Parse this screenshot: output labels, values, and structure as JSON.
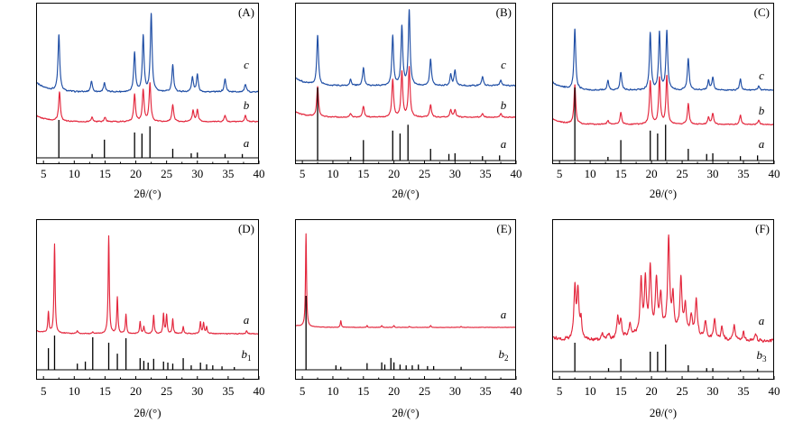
{
  "chart_data": [
    {
      "type": "line",
      "title": "(A)",
      "xlabel": "2θ/(°)",
      "ylabel": "",
      "xlim": [
        3.8,
        40
      ],
      "xticks": [
        5,
        10,
        15,
        20,
        25,
        30,
        35,
        40
      ],
      "series": [
        {
          "name": "c",
          "color": "#1f4ea5",
          "peaks": [
            [
              7.5,
              72
            ],
            [
              12.8,
              14
            ],
            [
              14.9,
              12
            ],
            [
              19.8,
              51
            ],
            [
              21.2,
              71
            ],
            [
              22.5,
              100
            ],
            [
              26.0,
              35
            ],
            [
              29.2,
              19
            ],
            [
              30.0,
              22
            ],
            [
              34.5,
              17
            ],
            [
              37.8,
              10
            ]
          ]
        },
        {
          "name": "b",
          "color": "#e3263c",
          "peaks": [
            [
              7.6,
              76
            ],
            [
              12.9,
              12
            ],
            [
              15.0,
              12
            ],
            [
              19.8,
              71
            ],
            [
              21.2,
              83
            ],
            [
              22.3,
              100
            ],
            [
              26.0,
              45
            ],
            [
              29.3,
              29
            ],
            [
              30.0,
              31
            ],
            [
              34.5,
              17
            ],
            [
              37.8,
              17
            ]
          ]
        },
        {
          "name": "a",
          "color": "#000000",
          "sticks": [
            [
              7.5,
              100
            ],
            [
              12.9,
              10
            ],
            [
              14.9,
              48
            ],
            [
              19.8,
              67
            ],
            [
              21.0,
              64
            ],
            [
              22.3,
              83
            ],
            [
              26.0,
              24
            ],
            [
              29.0,
              12
            ],
            [
              30.0,
              14
            ],
            [
              34.5,
              10
            ],
            [
              37.3,
              10
            ]
          ]
        }
      ]
    },
    {
      "type": "line",
      "title": "(B)",
      "xlabel": "2θ/(°)",
      "ylabel": "",
      "xlim": [
        3.8,
        40
      ],
      "xticks": [
        5,
        10,
        15,
        20,
        25,
        30,
        35,
        40
      ],
      "series": [
        {
          "name": "c",
          "color": "#1f4ea5",
          "peaks": [
            [
              7.5,
              66
            ],
            [
              12.9,
              8
            ],
            [
              15.0,
              24
            ],
            [
              19.8,
              66
            ],
            [
              21.3,
              78
            ],
            [
              22.5,
              100
            ],
            [
              26.0,
              36
            ],
            [
              29.3,
              14
            ],
            [
              30.0,
              20
            ],
            [
              34.5,
              12
            ],
            [
              37.5,
              8
            ]
          ]
        },
        {
          "name": "b",
          "color": "#e3263c",
          "peaks": [
            [
              7.5,
              60
            ],
            [
              12.9,
              7
            ],
            [
              15.0,
              22
            ],
            [
              19.8,
              76
            ],
            [
              21.3,
              91
            ],
            [
              22.5,
              100
            ],
            [
              26.0,
              25
            ],
            [
              29.3,
              15
            ],
            [
              30.0,
              15
            ],
            [
              34.5,
              7
            ],
            [
              37.5,
              7
            ]
          ]
        },
        {
          "name": "a",
          "color": "#000000",
          "sticks": [
            [
              7.5,
              100
            ],
            [
              12.9,
              5
            ],
            [
              15.0,
              28
            ],
            [
              19.8,
              41
            ],
            [
              21.0,
              37
            ],
            [
              22.3,
              49
            ],
            [
              26.0,
              16
            ],
            [
              29.0,
              9
            ],
            [
              30.0,
              10
            ],
            [
              34.5,
              6
            ],
            [
              37.3,
              7
            ]
          ]
        }
      ]
    },
    {
      "type": "line",
      "title": "(C)",
      "xlabel": "2θ/(°)",
      "ylabel": "",
      "xlim": [
        3.8,
        40
      ],
      "xticks": [
        5,
        10,
        15,
        20,
        25,
        30,
        35,
        40
      ],
      "series": [
        {
          "name": "c",
          "color": "#1f4ea5",
          "peaks": [
            [
              7.5,
              100
            ],
            [
              12.9,
              15
            ],
            [
              15.0,
              30
            ],
            [
              19.8,
              94
            ],
            [
              21.3,
              94
            ],
            [
              22.5,
              97
            ],
            [
              26.0,
              52
            ],
            [
              29.3,
              15
            ],
            [
              30.0,
              21
            ],
            [
              34.5,
              18
            ],
            [
              37.5,
              7
            ]
          ]
        },
        {
          "name": "b",
          "color": "#e3263c",
          "peaks": [
            [
              7.5,
              81
            ],
            [
              12.9,
              8
            ],
            [
              15.0,
              25
            ],
            [
              19.8,
              91
            ],
            [
              21.3,
              96
            ],
            [
              22.5,
              100
            ],
            [
              26.0,
              43
            ],
            [
              29.3,
              15
            ],
            [
              30.0,
              23
            ],
            [
              34.5,
              19
            ],
            [
              37.5,
              8
            ]
          ]
        },
        {
          "name": "a",
          "color": "#000000",
          "sticks": [
            [
              7.5,
              100
            ],
            [
              12.9,
              5
            ],
            [
              15.0,
              28
            ],
            [
              19.8,
              41
            ],
            [
              21.0,
              37
            ],
            [
              22.3,
              49
            ],
            [
              26.0,
              16
            ],
            [
              29.0,
              9
            ],
            [
              30.0,
              10
            ],
            [
              34.5,
              6
            ],
            [
              37.3,
              7
            ]
          ]
        }
      ]
    },
    {
      "type": "line",
      "title": "(D)",
      "xlabel": "2θ/(°)",
      "ylabel": "",
      "xlim": [
        3.8,
        40
      ],
      "xticks": [
        5,
        10,
        15,
        20,
        25,
        30,
        35,
        40
      ],
      "series": [
        {
          "name": "a",
          "color": "#e3263c",
          "peaks": [
            [
              5.8,
              21
            ],
            [
              6.8,
              91
            ],
            [
              10.5,
              3
            ],
            [
              13.0,
              2
            ],
            [
              15.6,
              100
            ],
            [
              17.0,
              37
            ],
            [
              18.4,
              20
            ],
            [
              20.7,
              12
            ],
            [
              21.3,
              7
            ],
            [
              22.9,
              19
            ],
            [
              24.5,
              20
            ],
            [
              25.0,
              19
            ],
            [
              26.0,
              15
            ],
            [
              27.7,
              7
            ],
            [
              30.5,
              12
            ],
            [
              31.0,
              11
            ],
            [
              31.5,
              7
            ],
            [
              38.0,
              3
            ]
          ]
        },
        {
          "name": "b",
          "sub": "1",
          "color": "#000000",
          "sticks": [
            [
              5.8,
              63
            ],
            [
              6.8,
              100
            ],
            [
              10.5,
              18
            ],
            [
              11.8,
              24
            ],
            [
              13.0,
              95
            ],
            [
              15.6,
              79
            ],
            [
              17.0,
              47
            ],
            [
              18.4,
              92
            ],
            [
              20.7,
              34
            ],
            [
              21.3,
              26
            ],
            [
              22.0,
              21
            ],
            [
              22.9,
              32
            ],
            [
              24.5,
              24
            ],
            [
              25.2,
              21
            ],
            [
              26.0,
              18
            ],
            [
              27.7,
              34
            ],
            [
              29.0,
              13
            ],
            [
              30.5,
              21
            ],
            [
              31.5,
              16
            ],
            [
              32.5,
              13
            ],
            [
              34.0,
              10
            ],
            [
              36.0,
              8
            ]
          ]
        }
      ]
    },
    {
      "type": "line",
      "title": "(E)",
      "xlabel": "2θ/(°)",
      "ylabel": "",
      "xlim": [
        3.8,
        40
      ],
      "xticks": [
        5,
        10,
        15,
        20,
        25,
        30,
        35,
        40
      ],
      "series": [
        {
          "name": "a",
          "color": "#e3263c",
          "peaks": [
            [
              5.6,
              100
            ],
            [
              11.3,
              7
            ],
            [
              15.6,
              2
            ],
            [
              18.0,
              2
            ],
            [
              20.0,
              2
            ],
            [
              22.5,
              1
            ],
            [
              26.0,
              2
            ],
            [
              31.0,
              1
            ]
          ]
        },
        {
          "name": "b",
          "sub": "2",
          "color": "#000000",
          "sticks": [
            [
              5.6,
              100
            ],
            [
              10.5,
              6
            ],
            [
              11.3,
              4
            ],
            [
              15.6,
              9
            ],
            [
              18.0,
              10
            ],
            [
              18.5,
              7
            ],
            [
              19.5,
              16
            ],
            [
              20.0,
              10
            ],
            [
              21.0,
              7
            ],
            [
              22.0,
              6
            ],
            [
              23.0,
              6
            ],
            [
              24.0,
              7
            ],
            [
              25.5,
              5
            ],
            [
              26.5,
              5
            ],
            [
              31.0,
              4
            ]
          ]
        }
      ]
    },
    {
      "type": "line",
      "title": "(F)",
      "xlabel": "2θ/(°)",
      "ylabel": "",
      "xlim": [
        3.8,
        40
      ],
      "xticks": [
        5,
        10,
        15,
        20,
        25,
        30,
        35,
        40
      ],
      "series": [
        {
          "name": "a",
          "color": "#e3263c",
          "peaks": [
            [
              7.5,
              56
            ],
            [
              8.0,
              53
            ],
            [
              8.5,
              20
            ],
            [
              12.0,
              7
            ],
            [
              13.0,
              6
            ],
            [
              14.5,
              23
            ],
            [
              15.0,
              18
            ],
            [
              16.5,
              14
            ],
            [
              18.3,
              58
            ],
            [
              19.0,
              56
            ],
            [
              19.8,
              70
            ],
            [
              20.8,
              55
            ],
            [
              21.5,
              38
            ],
            [
              22.8,
              100
            ],
            [
              23.5,
              36
            ],
            [
              24.8,
              58
            ],
            [
              25.5,
              30
            ],
            [
              26.5,
              20
            ],
            [
              27.3,
              40
            ],
            [
              28.8,
              18
            ],
            [
              30.3,
              22
            ],
            [
              31.5,
              14
            ],
            [
              33.5,
              17
            ],
            [
              35.0,
              9
            ],
            [
              37.0,
              8
            ]
          ]
        },
        {
          "name": "b",
          "sub": "3",
          "color": "#000000",
          "sticks": [
            [
              7.5,
              100
            ],
            [
              13.0,
              12
            ],
            [
              15.0,
              44
            ],
            [
              19.8,
              69
            ],
            [
              21.0,
              69
            ],
            [
              22.3,
              94
            ],
            [
              26.0,
              22
            ],
            [
              29.0,
              12
            ],
            [
              30.0,
              12
            ],
            [
              34.5,
              6
            ],
            [
              37.3,
              9
            ]
          ]
        }
      ]
    }
  ]
}
